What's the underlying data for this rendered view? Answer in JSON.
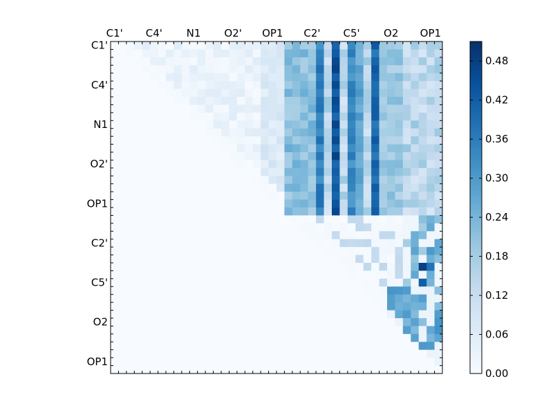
{
  "chart_data": {
    "type": "heatmap",
    "title": "",
    "xlabel": "",
    "ylabel": "",
    "colormap": "Blues",
    "color_low": "#f7fbff",
    "color_high": "#08306b",
    "vmin": 0.0,
    "vmax": 0.51,
    "grid_size": 42,
    "x_tick_labels": [
      "C1'",
      "C4'",
      "N1",
      "O2'",
      "OP1",
      "C2'",
      "C5'",
      "O2",
      "OP1"
    ],
    "y_tick_labels": [
      "C1'",
      "C4'",
      "N1",
      "O2'",
      "OP1",
      "C2'",
      "C5'",
      "O2",
      "OP1"
    ],
    "colorbar_tick_labels": [
      "0.00",
      "0.06",
      "0.12",
      "0.18",
      "0.24",
      "0.30",
      "0.36",
      "0.42",
      "0.48"
    ],
    "colorbar_ticks": [
      0.0,
      0.06,
      0.12,
      0.18,
      0.24,
      0.3,
      0.36,
      0.42,
      0.48
    ],
    "structure": {
      "upper_triangle_only": true,
      "upper_block_rows": [
        0,
        22
      ],
      "upper_block_cols": [
        22,
        42
      ],
      "strong_columns": [
        {
          "col": 26,
          "value": 0.35
        },
        {
          "col": 28,
          "value": 0.44
        },
        {
          "col": 30,
          "value": 0.33
        },
        {
          "col": 31,
          "value": 0.27
        },
        {
          "col": 33,
          "value": 0.4
        }
      ],
      "lower_right_hotspots": [
        {
          "row": 28,
          "col": 39,
          "value": 0.48
        },
        {
          "row": 28,
          "col": 40,
          "value": 0.38
        },
        {
          "row": 30,
          "col": 39,
          "value": 0.42
        },
        {
          "row": 26,
          "col": 40,
          "value": 0.3
        },
        {
          "row": 33,
          "col": 37,
          "value": 0.26
        }
      ]
    }
  }
}
